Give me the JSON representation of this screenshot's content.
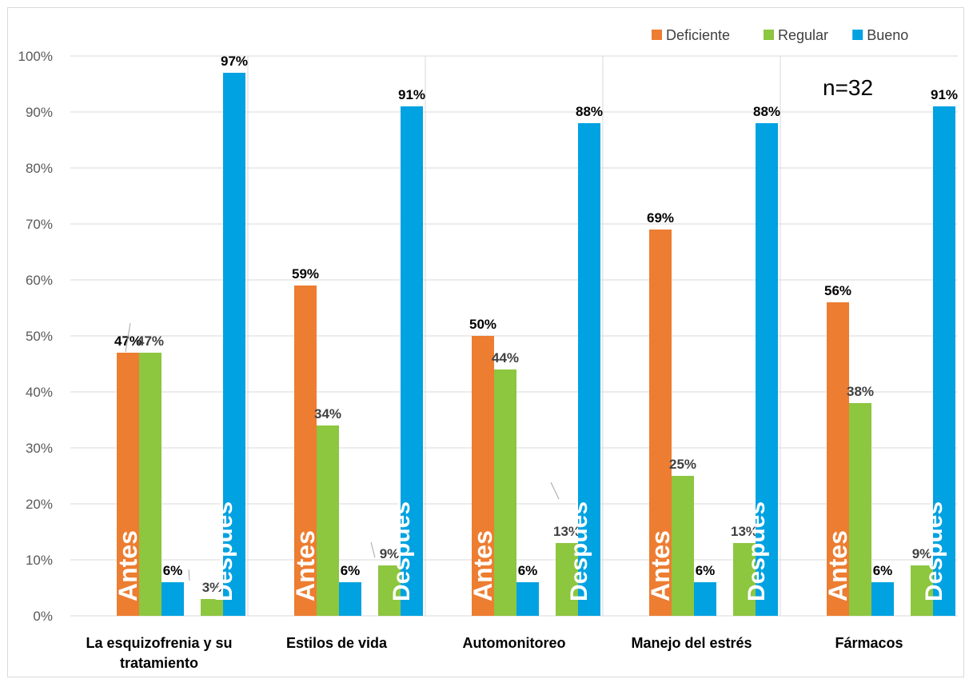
{
  "chart_data": {
    "type": "bar",
    "categories": [
      "La esquizofrenia y su tratamiento",
      "Estilos de vida",
      "Automonitoreo",
      "Manejo del estrés",
      "Fármacos"
    ],
    "category_lines": [
      [
        "La esquizofrenia y su",
        "tratamiento"
      ],
      [
        "Estilos de vida"
      ],
      [
        "Automonitoreo"
      ],
      [
        "Manejo del estrés"
      ],
      [
        "Fármacos"
      ]
    ],
    "groups": [
      "Antes",
      "Después"
    ],
    "series": [
      {
        "name": "Deficiente",
        "color": "#ed7d31",
        "antes": [
          47,
          59,
          50,
          69,
          56
        ],
        "despues": [
          0,
          0,
          0,
          0,
          0
        ],
        "labels_antes": [
          "47%",
          "59%",
          "50%",
          "69%",
          "56%"
        ]
      },
      {
        "name": "Regular",
        "color": "#8dc63f",
        "antes": [
          47,
          34,
          44,
          25,
          38
        ],
        "despues": [
          3,
          9,
          13,
          13,
          9
        ],
        "labels_antes": [
          "47%",
          "34%",
          "44%",
          "25%",
          "38%"
        ],
        "labels_despues": [
          "3%",
          "9%",
          "13%",
          "13%",
          "9%"
        ]
      },
      {
        "name": "Bueno",
        "color": "#00a2e1",
        "antes": [
          6,
          6,
          6,
          6,
          6
        ],
        "despues": [
          97,
          91,
          88,
          88,
          91
        ],
        "labels_antes": [
          "6%",
          "6%",
          "6%",
          "6%",
          "6%"
        ],
        "labels_despues": [
          "97%",
          "91%",
          "88%",
          "88%",
          "91%"
        ]
      }
    ],
    "y_ticks": [
      "0%",
      "10%",
      "20%",
      "30%",
      "40%",
      "50%",
      "60%",
      "70%",
      "80%",
      "90%",
      "100%"
    ],
    "ylim": [
      0,
      100
    ],
    "grid": true,
    "legend_position": "top-right",
    "annotation": "n=32"
  }
}
